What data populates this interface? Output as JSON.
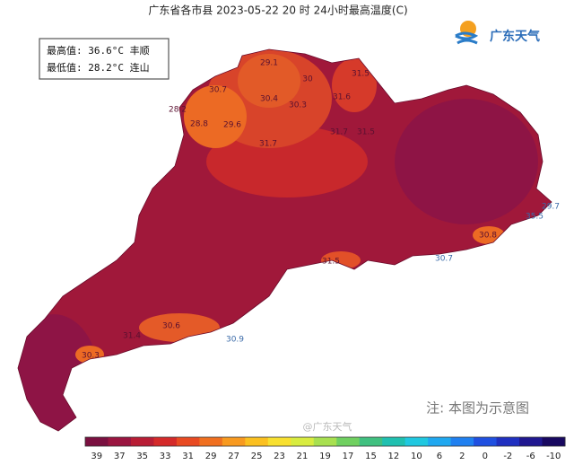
{
  "header": {
    "title": "广东省各市县 2023-05-22 20 时 24小时最高温度(C)",
    "logo": "广东天气"
  },
  "summary": {
    "max": "最高值: 36.6°C 丰顺",
    "min": "最低值: 28.2°C 连山"
  },
  "map": {
    "labels": [
      "29.1",
      "30",
      "31.5",
      "30.7",
      "30.4",
      "31.6",
      "28.2",
      "30.3",
      "28.8",
      "29.6",
      "31.7",
      "31.5",
      "31.7",
      "29.7",
      "35.5",
      "30.8",
      "30.7",
      "31.5",
      "31.4",
      "30.6",
      "30.9",
      "30.3"
    ]
  },
  "note": "注: 本图为示意图",
  "watermark": "@广东天气",
  "colorbar": {
    "ticks": [
      39,
      37,
      35,
      33,
      31,
      29,
      27,
      25,
      23,
      21,
      19,
      17,
      15,
      12,
      10,
      6,
      2,
      0,
      -2,
      -6,
      -10
    ],
    "colors": [
      "#7a1040",
      "#9a1540",
      "#b81d35",
      "#d42a2a",
      "#e84a22",
      "#f07020",
      "#f89a20",
      "#fbc020",
      "#f8e030",
      "#d8ec40",
      "#a8e050",
      "#70d060",
      "#40c080",
      "#20c0b0",
      "#20c8e0",
      "#20a8f0",
      "#2080f0",
      "#2050e0",
      "#2030c0",
      "#201890",
      "#180860"
    ]
  }
}
